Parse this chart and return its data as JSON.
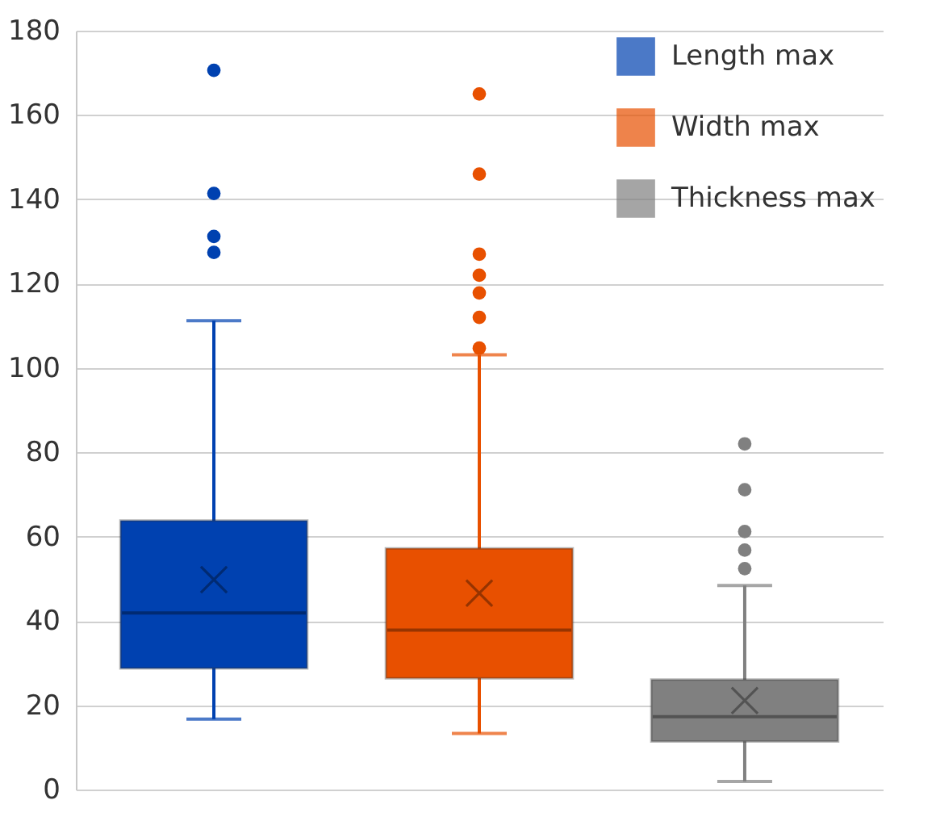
{
  "chart_data": {
    "type": "box",
    "categories": [
      null
    ],
    "ylim": [
      0,
      180
    ],
    "yticks": [
      0,
      20,
      40,
      60,
      80,
      100,
      120,
      140,
      160,
      180
    ],
    "grid": "y",
    "legend": "top right",
    "tick_labels": "y",
    "series": [
      {
        "name": "Length max",
        "color": "#0041b0",
        "boxes": [
          {
            "low": 16.7,
            "q1": 28.7,
            "median": 41.9,
            "q3": 63.8,
            "high": 111.2,
            "mean": 49.8,
            "outliers": [
              170.6,
              141.4,
              131.2,
              127.4
            ]
          }
        ]
      },
      {
        "name": "Width max",
        "color": "#e85000",
        "boxes": [
          {
            "low": 13.3,
            "q1": 26.4,
            "median": 37.8,
            "q3": 57.2,
            "high": 103.1,
            "mean": 46.6,
            "outliers": [
              165,
              146,
              127,
              122,
              117.8,
              112,
              104.7
            ]
          }
        ]
      },
      {
        "name": "Thickness max",
        "color": "#808080",
        "boxes": [
          {
            "low": 1.9,
            "q1": 11.4,
            "median": 17.3,
            "q3": 26.1,
            "high": 48.4,
            "mean": 21.1,
            "outliers": [
              82,
              71.1,
              61.2,
              56.8,
              52.4
            ]
          }
        ]
      }
    ]
  }
}
